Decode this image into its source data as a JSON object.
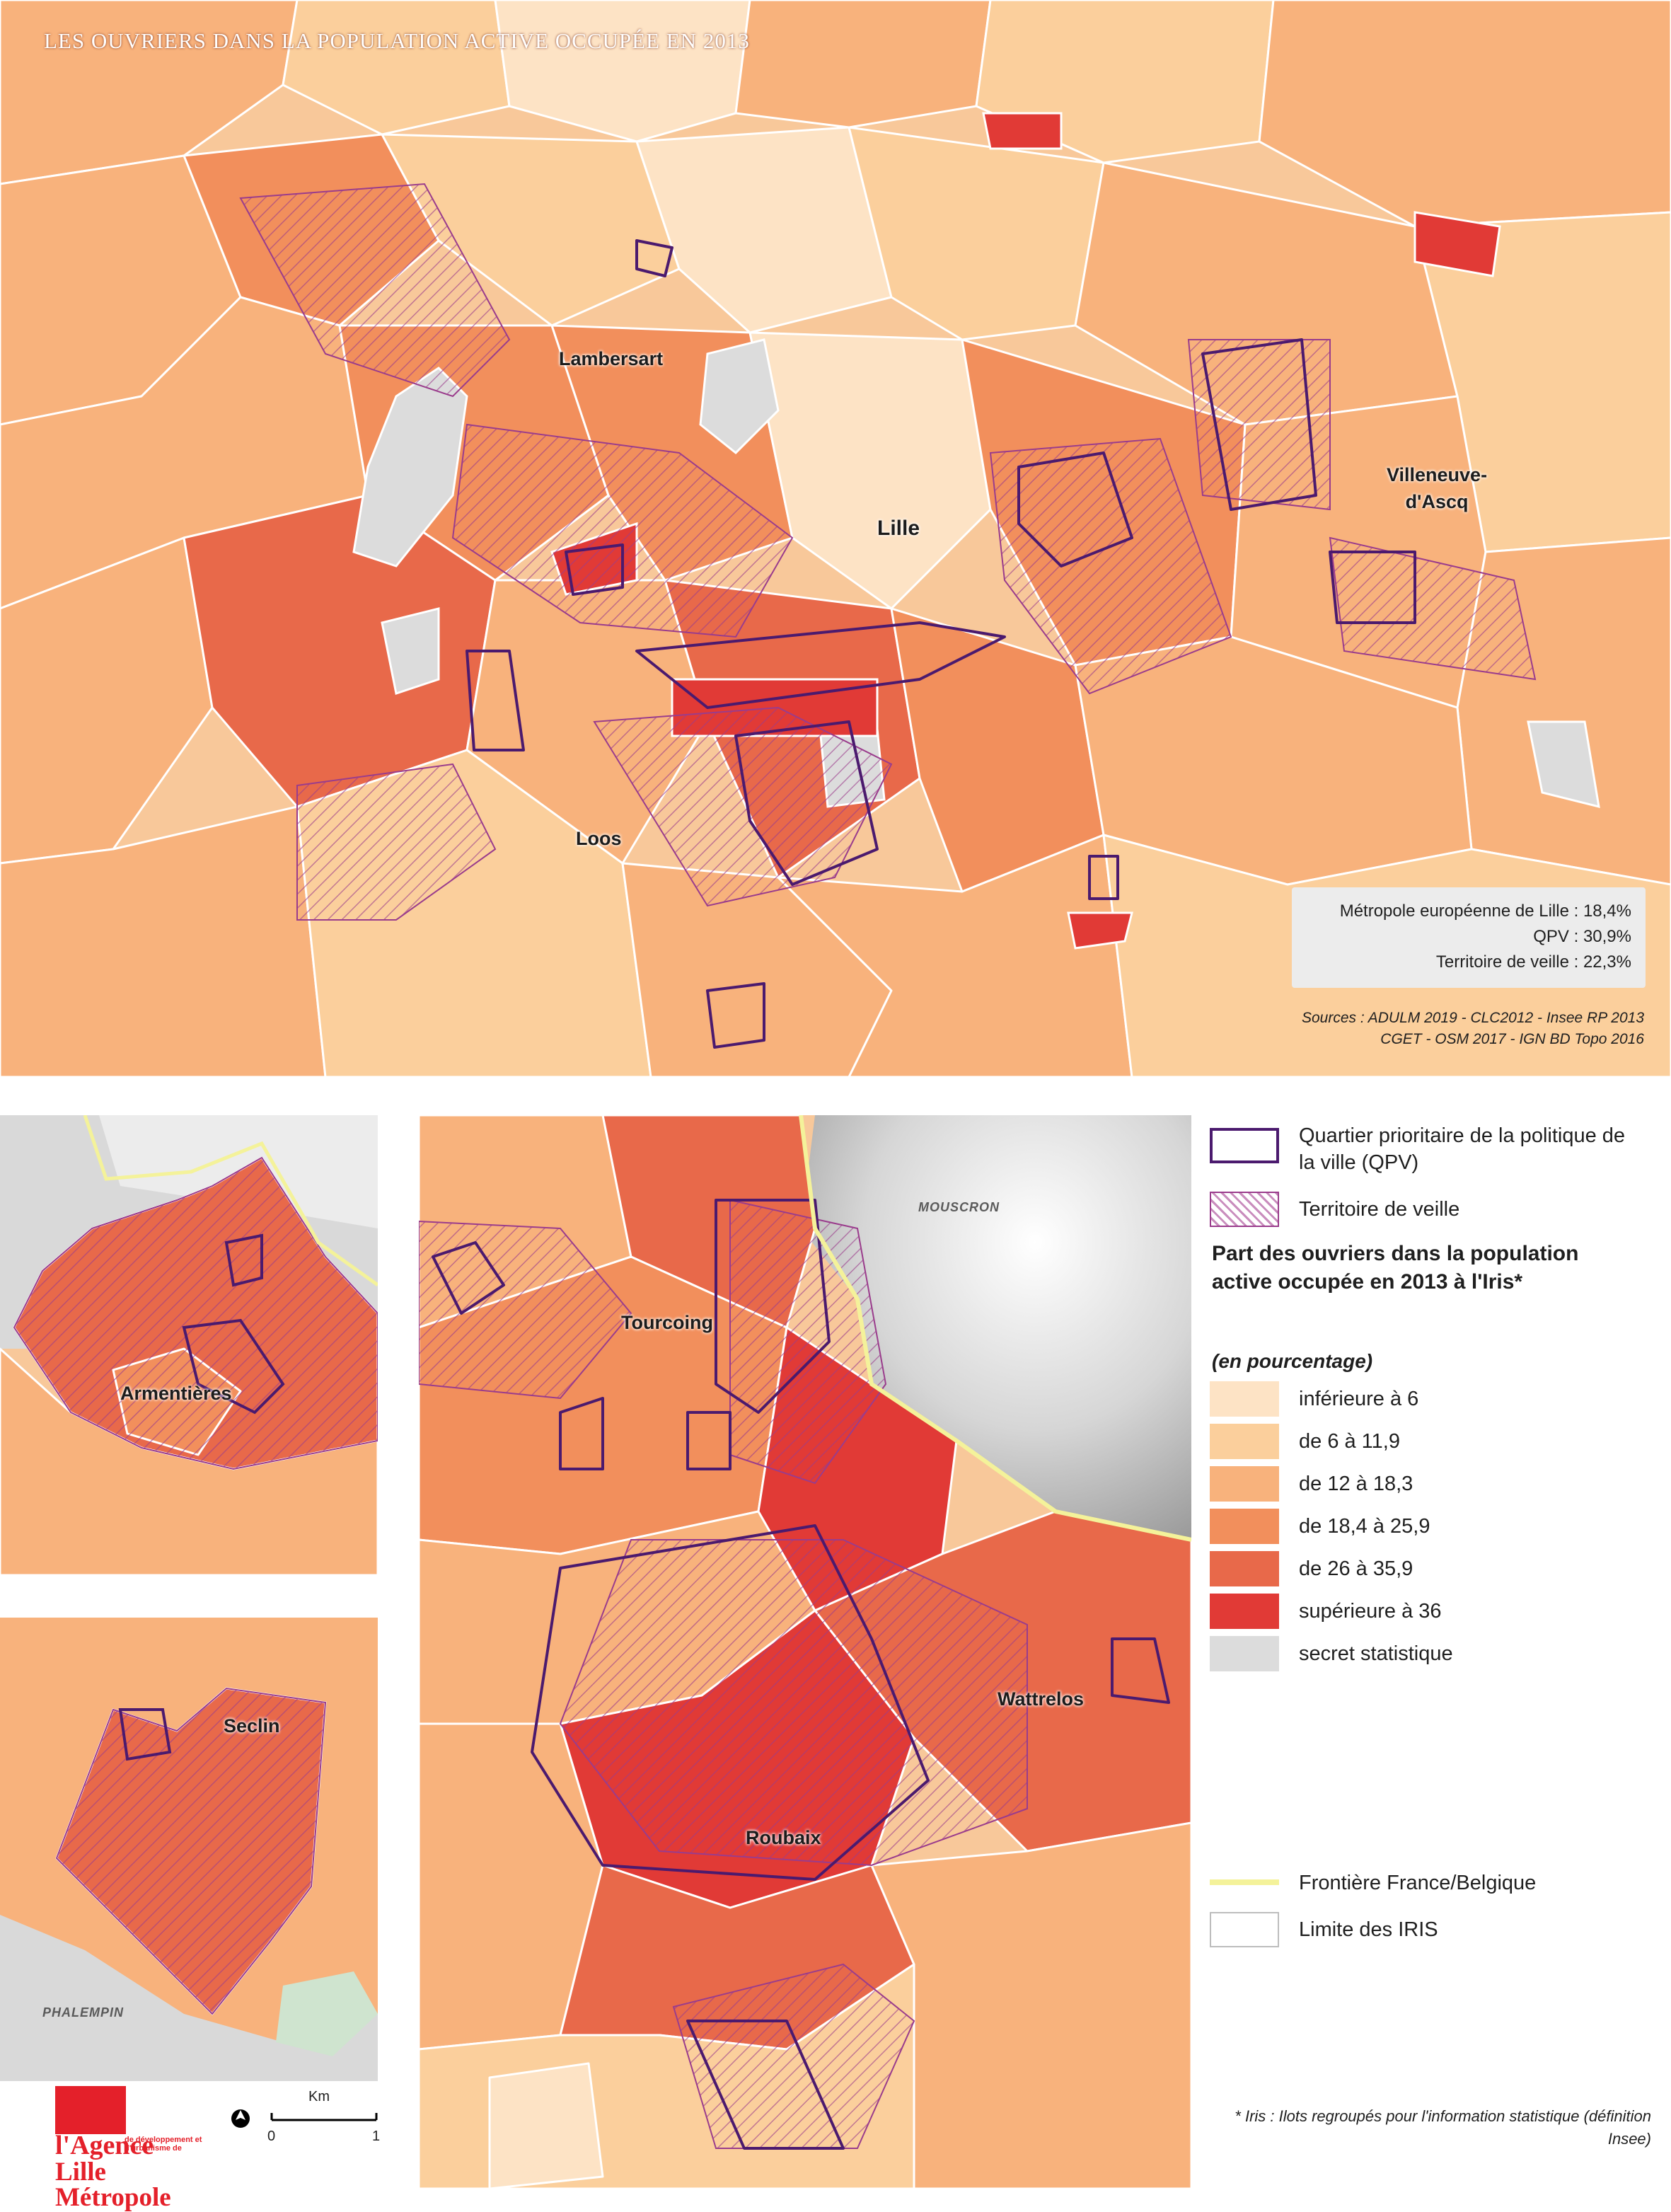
{
  "title": "LES OUVRIERS DANS LA POPULATION ACTIVE OCCUPÉE EN 2013",
  "places": {
    "lambersart": "Lambersart",
    "lille": "Lille",
    "villeneuve": "Villeneuve-\nd'Ascq",
    "loos": "Loos",
    "armentieres": "Armentières",
    "seclin": "Seclin",
    "phalempin": "PHALEMPIN",
    "tourcoing": "Tourcoing",
    "mouscron": "MOUSCRON",
    "wattrelos": "Wattrelos",
    "roubaix": "Roubaix"
  },
  "stats": {
    "mel": "Métropole européenne de Lille : 18,4%",
    "qpv": "QPV : 30,9%",
    "veille": "Territoire de veille : 22,3%"
  },
  "sources": {
    "line1": "Sources : ADULM 2019 - CLC2012 - Insee RP 2013",
    "line2": "CGET - OSM 2017 - IGN BD Topo 2016"
  },
  "legend": {
    "qpv": "Quartier prioritaire de la politique de la ville (QPV)",
    "veille": "Territoire de veille",
    "title": "Part des ouvriers dans la population active occupée en 2013 à l'Iris*",
    "subtitle": "(en pourcentage)",
    "classes": [
      {
        "label": "inférieure à 6",
        "color": "#fde3c5"
      },
      {
        "label": "de 6 à 11,9",
        "color": "#fbcf9c"
      },
      {
        "label": "de 12 à 18,3",
        "color": "#f8b27c"
      },
      {
        "label": "de 18,4 à 25,9",
        "color": "#f28f5c"
      },
      {
        "label": "de 26 à 35,9",
        "color": "#e8694a"
      },
      {
        "label": "supérieure à 36",
        "color": "#e13a36"
      },
      {
        "label": "secret statistique",
        "color": "#dcdcdc"
      }
    ],
    "border": "Frontière France/Belgique",
    "iris": "Limite des IRIS"
  },
  "colors": {
    "qpv_outline": "#4b1a6e",
    "veille_hatch": "#9a3c8c",
    "border_line": "#f4f29a",
    "iris_line": "#ffffff"
  },
  "footnote": "* Iris : Ilots regroupés pour l'information statistique (définition Insee)",
  "logo": {
    "name": "l'Agence",
    "tagline": "de développement et d'urbanisme de",
    "city": "Lille Métropole"
  },
  "scale": {
    "unit": "Km",
    "start": "0",
    "end": "1"
  }
}
